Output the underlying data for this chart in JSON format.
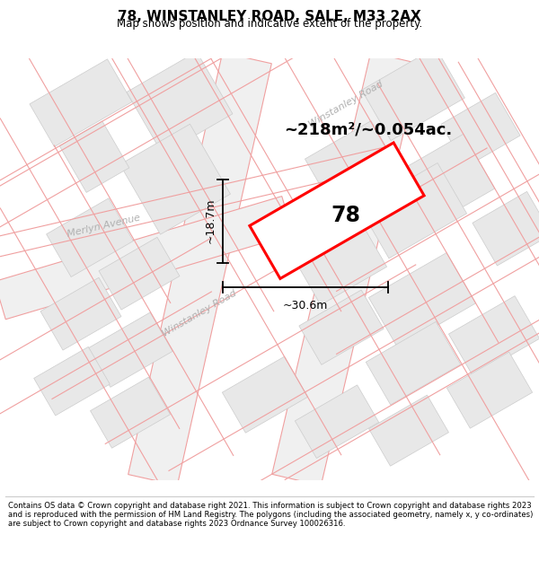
{
  "title": "78, WINSTANLEY ROAD, SALE, M33 2AX",
  "subtitle": "Map shows position and indicative extent of the property.",
  "footer": "Contains OS data © Crown copyright and database right 2021. This information is subject to Crown copyright and database rights 2023 and is reproduced with the permission of HM Land Registry. The polygons (including the associated geometry, namely x, y co-ordinates) are subject to Crown copyright and database rights 2023 Ordnance Survey 100026316.",
  "area_text": "~218m²/~0.054ac.",
  "width_text": "~30.6m",
  "height_text": "~18.7m",
  "house_number": "78",
  "bg_color": "#ffffff",
  "map_bg": "#ffffff",
  "road_band_color": "#eeeeee",
  "road_pink": "#f0a0a0",
  "road_pink2": "#e8b0b0",
  "building_fill": "#e8e8e8",
  "building_edge": "#cccccc",
  "highlight_color": "#ff0000",
  "road_label_color": "#aaaaaa",
  "dim_color": "#222222"
}
